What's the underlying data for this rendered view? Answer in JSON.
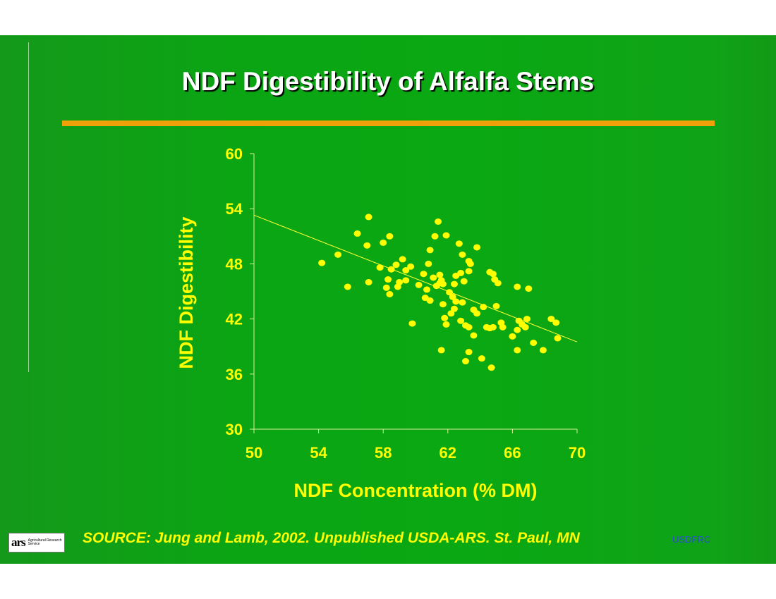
{
  "slide": {
    "title": "NDF Digestibility of Alfalfa Stems",
    "source": "SOURCE:  Jung and Lamb, 2002.  Unpublished USDA-ARS. St. Paul, MN",
    "org": "USDFRC",
    "logo": {
      "mark": "ars",
      "text": "Agricultural Research Service"
    }
  },
  "colors": {
    "background": "#0aa812",
    "title_rule": "#f0a10a",
    "text_yellow": "#ffff00",
    "title_text": "#ffffff"
  },
  "chart_data": {
    "type": "scatter",
    "title": "",
    "xlabel": "NDF Concentration (% DM)",
    "ylabel": "NDF Digestibility",
    "xlim": [
      50,
      70
    ],
    "ylim": [
      30,
      60
    ],
    "xticks": [
      50,
      54,
      58,
      62,
      66,
      70
    ],
    "yticks": [
      30,
      36,
      42,
      48,
      54,
      60
    ],
    "grid": false,
    "legend": "none",
    "trendline": {
      "x": [
        50,
        70
      ],
      "y": [
        53.3,
        39.5
      ]
    },
    "points": [
      [
        54.2,
        48.1
      ],
      [
        55.2,
        49.0
      ],
      [
        55.8,
        45.5
      ],
      [
        56.4,
        51.3
      ],
      [
        57.1,
        53.1
      ],
      [
        57.0,
        50.0
      ],
      [
        57.1,
        46.0
      ],
      [
        57.8,
        47.6
      ],
      [
        58.0,
        50.3
      ],
      [
        58.4,
        51.0
      ],
      [
        58.5,
        47.4
      ],
      [
        58.3,
        46.3
      ],
      [
        58.2,
        45.4
      ],
      [
        58.4,
        44.7
      ],
      [
        58.8,
        47.9
      ],
      [
        58.9,
        45.5
      ],
      [
        59.2,
        48.5
      ],
      [
        59.4,
        46.2
      ],
      [
        59.4,
        47.3
      ],
      [
        59.7,
        47.7
      ],
      [
        59.8,
        41.5
      ],
      [
        59.0,
        46.0
      ],
      [
        60.2,
        45.7
      ],
      [
        60.5,
        46.9
      ],
      [
        60.8,
        48.0
      ],
      [
        60.9,
        49.5
      ],
      [
        60.7,
        45.2
      ],
      [
        60.6,
        44.3
      ],
      [
        60.9,
        44.0
      ],
      [
        61.1,
        46.5
      ],
      [
        61.2,
        51.0
      ],
      [
        61.4,
        52.6
      ],
      [
        61.3,
        45.6
      ],
      [
        61.5,
        46.8
      ],
      [
        61.5,
        45.9
      ],
      [
        61.6,
        46.2
      ],
      [
        61.7,
        45.8
      ],
      [
        61.7,
        43.6
      ],
      [
        61.9,
        51.1
      ],
      [
        61.8,
        42.1
      ],
      [
        61.9,
        41.4
      ],
      [
        62.1,
        44.9
      ],
      [
        62.2,
        42.6
      ],
      [
        62.4,
        43.1
      ],
      [
        62.3,
        44.4
      ],
      [
        62.5,
        43.9
      ],
      [
        62.4,
        45.8
      ],
      [
        62.5,
        46.7
      ],
      [
        62.7,
        50.2
      ],
      [
        62.8,
        47.0
      ],
      [
        62.8,
        41.8
      ],
      [
        62.9,
        43.8
      ],
      [
        62.9,
        49.0
      ],
      [
        63.0,
        46.1
      ],
      [
        63.1,
        41.3
      ],
      [
        63.3,
        48.3
      ],
      [
        63.3,
        47.2
      ],
      [
        63.4,
        48.0
      ],
      [
        63.3,
        41.1
      ],
      [
        63.6,
        43.0
      ],
      [
        63.6,
        40.2
      ],
      [
        63.8,
        49.8
      ],
      [
        63.8,
        42.6
      ],
      [
        64.2,
        43.3
      ],
      [
        64.1,
        37.7
      ],
      [
        63.3,
        38.4
      ],
      [
        61.6,
        38.6
      ],
      [
        63.1,
        37.4
      ],
      [
        64.7,
        36.7
      ],
      [
        64.4,
        41.1
      ],
      [
        64.6,
        41.0
      ],
      [
        64.8,
        41.1
      ],
      [
        64.6,
        47.1
      ],
      [
        64.9,
        46.3
      ],
      [
        65.1,
        45.9
      ],
      [
        65.0,
        43.4
      ],
      [
        65.4,
        41.1
      ],
      [
        65.3,
        41.6
      ],
      [
        66.0,
        40.1
      ],
      [
        66.3,
        45.5
      ],
      [
        66.3,
        40.8
      ],
      [
        66.3,
        38.6
      ],
      [
        66.4,
        41.8
      ],
      [
        66.6,
        41.4
      ],
      [
        66.8,
        41.1
      ],
      [
        66.9,
        42.0
      ],
      [
        67.0,
        45.3
      ],
      [
        67.3,
        39.4
      ],
      [
        67.9,
        38.6
      ],
      [
        68.4,
        42.0
      ],
      [
        68.7,
        41.6
      ],
      [
        68.8,
        39.9
      ],
      [
        64.8,
        46.9
      ]
    ]
  }
}
